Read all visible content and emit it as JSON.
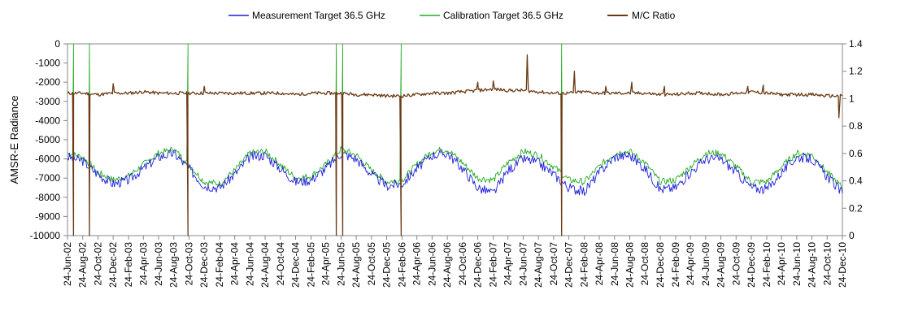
{
  "chart_data": {
    "type": "line",
    "ylabel": "AMSR-E Radiance",
    "y2label": "",
    "ylim": [
      -10000,
      0
    ],
    "y2lim": [
      0,
      1.4
    ],
    "y_ticks": [
      "0",
      "-1000",
      "-2000",
      "-3000",
      "-4000",
      "-5000",
      "-6000",
      "-7000",
      "-8000",
      "-9000",
      "-10000"
    ],
    "y2_ticks": [
      "1.4",
      "1.2",
      "1",
      "0.8",
      "0.6",
      "0.4",
      "0.2",
      "0"
    ],
    "x_start": "2002-06-24",
    "x_end": "2010-12-24",
    "x_ticks": [
      "24-Jun-02",
      "24-Aug-02",
      "24-Oct-02",
      "24-Dec-02",
      "24-Feb-03",
      "24-Apr-03",
      "24-Jun-03",
      "24-Aug-03",
      "24-Oct-03",
      "24-Dec-03",
      "24-Feb-04",
      "24-Apr-04",
      "24-Jun-04",
      "24-Aug-04",
      "24-Oct-04",
      "24-Dec-04",
      "24-Feb-05",
      "24-Apr-05",
      "24-Jun-05",
      "24-Aug-05",
      "24-Oct-05",
      "24-Dec-05",
      "24-Feb-06",
      "24-Apr-06",
      "24-Jun-06",
      "24-Aug-06",
      "24-Oct-06",
      "24-Dec-06",
      "24-Feb-07",
      "24-Apr-07",
      "24-Jun-07",
      "24-Aug-07",
      "24-Oct-07",
      "24-Dec-07",
      "24-Feb-08",
      "24-Apr-08",
      "24-Jun-08",
      "24-Aug-08",
      "24-Oct-08",
      "24-Dec-08",
      "24-Feb-09",
      "24-Apr-09",
      "24-Jun-09",
      "24-Aug-09",
      "24-Oct-09",
      "24-Dec-09",
      "24-Feb-10",
      "24-Apr-10",
      "24-Jun-10",
      "24-Aug-10",
      "24-Oct-10",
      "24-Dec-10"
    ],
    "legend_position": "top",
    "grid": false,
    "series": [
      {
        "name": "Measurement Target 36.5 GHz",
        "color": "#1f1fdc",
        "axis": "left",
        "x": [
          "2002-06-24",
          "2002-08-24",
          "2002-10-24",
          "2002-12-24",
          "2003-02-24",
          "2003-04-24",
          "2003-06-24",
          "2003-08-24",
          "2003-10-24",
          "2003-12-24",
          "2004-02-24",
          "2004-04-24",
          "2004-06-24",
          "2004-08-24",
          "2004-10-24",
          "2004-12-24",
          "2005-02-24",
          "2005-04-24",
          "2005-06-24",
          "2005-08-24",
          "2005-10-24",
          "2005-12-24",
          "2006-02-24",
          "2006-04-24",
          "2006-06-24",
          "2006-08-24",
          "2006-10-24",
          "2006-12-24",
          "2007-02-24",
          "2007-04-24",
          "2007-06-24",
          "2007-08-24",
          "2007-10-24",
          "2007-12-24",
          "2008-02-24",
          "2008-04-24",
          "2008-06-24",
          "2008-08-24",
          "2008-10-24",
          "2008-12-24",
          "2009-02-24",
          "2009-04-24",
          "2009-06-24",
          "2009-08-24",
          "2009-10-24",
          "2009-12-24",
          "2010-02-24",
          "2010-04-24",
          "2010-06-24",
          "2010-08-24",
          "2010-10-24",
          "2010-12-24"
        ],
        "y": [
          -5900,
          -6100,
          -6800,
          -7300,
          -7100,
          -6500,
          -5900,
          -5700,
          -6500,
          -7400,
          -7500,
          -6800,
          -5900,
          -5800,
          -6500,
          -7200,
          -7100,
          -6500,
          -5700,
          -6000,
          -6800,
          -7400,
          -7300,
          -6500,
          -5800,
          -5700,
          -6500,
          -7500,
          -7800,
          -6600,
          -6000,
          -6200,
          -6800,
          -7500,
          -7700,
          -6700,
          -5900,
          -5800,
          -6500,
          -7600,
          -7500,
          -6700,
          -6000,
          -6000,
          -6700,
          -7500,
          -7600,
          -6700,
          -5900,
          -6000,
          -6900,
          -7800
        ]
      },
      {
        "name": "Calibration Target 36.5 GHz",
        "color": "#22aa22",
        "axis": "left",
        "x": [
          "2002-06-24",
          "2002-08-24",
          "2002-10-24",
          "2002-12-24",
          "2003-02-24",
          "2003-04-24",
          "2003-06-24",
          "2003-08-24",
          "2003-10-24",
          "2003-12-24",
          "2004-02-24",
          "2004-04-24",
          "2004-06-24",
          "2004-08-24",
          "2004-10-24",
          "2004-12-24",
          "2005-02-24",
          "2005-04-24",
          "2005-06-24",
          "2005-08-24",
          "2005-10-24",
          "2005-12-24",
          "2006-02-24",
          "2006-04-24",
          "2006-06-24",
          "2006-08-24",
          "2006-10-24",
          "2006-12-24",
          "2007-02-24",
          "2007-04-24",
          "2007-06-24",
          "2007-08-24",
          "2007-10-24",
          "2007-12-24",
          "2008-02-24",
          "2008-04-24",
          "2008-06-24",
          "2008-08-24",
          "2008-10-24",
          "2008-12-24",
          "2009-02-24",
          "2009-04-24",
          "2009-06-24",
          "2009-08-24",
          "2009-10-24",
          "2009-12-24",
          "2010-02-24",
          "2010-04-24",
          "2010-06-24",
          "2010-08-24",
          "2010-10-24",
          "2010-12-24"
        ],
        "y": [
          -5700,
          -5900,
          -6700,
          -7100,
          -6900,
          -6300,
          -5700,
          -5500,
          -6300,
          -7200,
          -7300,
          -6600,
          -5700,
          -5600,
          -6300,
          -7000,
          -6900,
          -6300,
          -5500,
          -5800,
          -6600,
          -7200,
          -7100,
          -6300,
          -5600,
          -5500,
          -6200,
          -7000,
          -7100,
          -6200,
          -5600,
          -5800,
          -6400,
          -7100,
          -7200,
          -6400,
          -5700,
          -5600,
          -6200,
          -7200,
          -7100,
          -6400,
          -5700,
          -5700,
          -6400,
          -7200,
          -7200,
          -6400,
          -5700,
          -5800,
          -6700,
          -7500
        ]
      },
      {
        "name": "M/C Ratio",
        "color": "#6b3a14",
        "axis": "right",
        "x": [
          "2002-06-24",
          "2002-08-24",
          "2002-10-24",
          "2002-12-24",
          "2003-02-24",
          "2003-04-24",
          "2003-06-24",
          "2003-08-24",
          "2003-10-24",
          "2003-12-24",
          "2004-02-24",
          "2004-04-24",
          "2004-06-24",
          "2004-08-24",
          "2004-10-24",
          "2004-12-24",
          "2005-02-24",
          "2005-04-24",
          "2005-06-24",
          "2005-08-24",
          "2005-10-24",
          "2005-12-24",
          "2006-02-24",
          "2006-04-24",
          "2006-06-24",
          "2006-08-24",
          "2006-10-24",
          "2006-12-24",
          "2007-02-24",
          "2007-04-24",
          "2007-06-24",
          "2007-08-24",
          "2007-10-24",
          "2007-12-24",
          "2008-02-24",
          "2008-04-24",
          "2008-06-24",
          "2008-08-24",
          "2008-10-24",
          "2008-12-24",
          "2009-02-24",
          "2009-04-24",
          "2009-06-24",
          "2009-08-24",
          "2009-10-24",
          "2009-12-24",
          "2010-02-24",
          "2010-04-24",
          "2010-06-24",
          "2010-08-24",
          "2010-10-24",
          "2010-12-24"
        ],
        "y": [
          1.04,
          1.04,
          1.03,
          1.04,
          1.04,
          1.05,
          1.04,
          1.04,
          1.04,
          1.04,
          1.04,
          1.04,
          1.04,
          1.04,
          1.04,
          1.03,
          1.04,
          1.04,
          1.04,
          1.03,
          1.03,
          1.02,
          1.02,
          1.03,
          1.04,
          1.04,
          1.05,
          1.06,
          1.07,
          1.06,
          1.06,
          1.05,
          1.04,
          1.04,
          1.05,
          1.04,
          1.04,
          1.04,
          1.04,
          1.03,
          1.03,
          1.04,
          1.04,
          1.03,
          1.04,
          1.05,
          1.04,
          1.03,
          1.03,
          1.03,
          1.02,
          1.02
        ]
      }
    ],
    "ratio_spikes": [
      {
        "date": "2002-12-24",
        "value": 1.11
      },
      {
        "date": "2003-12-24",
        "value": 1.09
      },
      {
        "date": "2006-12-24",
        "value": 1.12
      },
      {
        "date": "2007-02-24",
        "value": 1.13
      },
      {
        "date": "2007-07-10",
        "value": 1.32
      },
      {
        "date": "2008-01-15",
        "value": 1.2
      },
      {
        "date": "2008-05-20",
        "value": 1.09
      },
      {
        "date": "2008-09-01",
        "value": 1.12
      },
      {
        "date": "2009-01-10",
        "value": 1.09
      },
      {
        "date": "2009-12-10",
        "value": 1.09
      },
      {
        "date": "2010-02-10",
        "value": 1.1
      },
      {
        "date": "2010-12-10",
        "value": 0.86
      }
    ],
    "dropouts": [
      {
        "date": "2002-07-18",
        "series": "Calibration Target 36.5 GHz"
      },
      {
        "date": "2002-09-20",
        "series": "Calibration Target 36.5 GHz"
      },
      {
        "date": "2003-10-20",
        "series": "Calibration Target 36.5 GHz"
      },
      {
        "date": "2005-06-05",
        "series": "Calibration Target 36.5 GHz"
      },
      {
        "date": "2005-07-01",
        "series": "Calibration Target 36.5 GHz"
      },
      {
        "date": "2006-02-20",
        "series": "Calibration Target 36.5 GHz"
      },
      {
        "date": "2007-11-25",
        "series": "Calibration Target 36.5 GHz"
      }
    ]
  }
}
